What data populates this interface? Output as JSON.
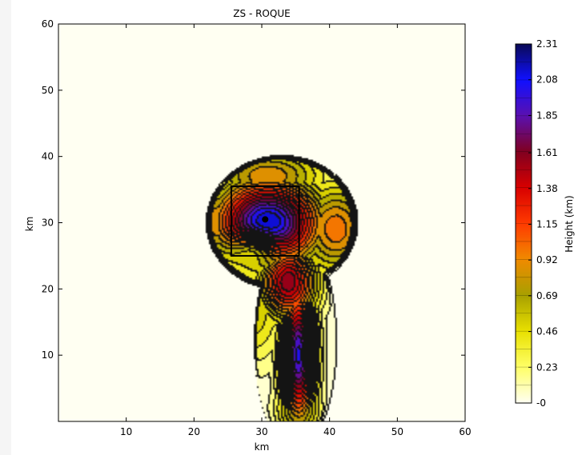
{
  "chart_data": {
    "type": "heatmap",
    "title": "ZS - ROQUE",
    "xlabel": "km",
    "ylabel": "km",
    "xlim": [
      0,
      60
    ],
    "ylim": [
      0,
      60
    ],
    "xticks": [
      "10",
      "20",
      "30",
      "40",
      "50",
      "60"
    ],
    "xtick_values": [
      10,
      20,
      30,
      40,
      50,
      60
    ],
    "yticks": [
      "10",
      "20",
      "30",
      "40",
      "50",
      "60"
    ],
    "ytick_values": [
      10,
      20,
      30,
      40,
      50,
      60
    ],
    "colorbar": {
      "label": "Height (km)",
      "ticks": [
        "2.31",
        "2.08",
        "1.85",
        "1.61",
        "1.38",
        "1.15",
        "0.92",
        "0.69",
        "0.46",
        "0.23",
        "-0"
      ],
      "tick_values": [
        2.31,
        2.08,
        1.85,
        1.61,
        1.38,
        1.15,
        0.92,
        0.69,
        0.46,
        0.23,
        0
      ],
      "range": [
        0,
        2.31
      ],
      "colors": [
        "#fffff2",
        "#ffff66",
        "#e8e000",
        "#a8a000",
        "#f08a00",
        "#ff3a00",
        "#d80000",
        "#800020",
        "#5a10b0",
        "#1010ff",
        "#0a0a55"
      ]
    },
    "background_color": "#fffff2",
    "island_peaks": [
      {
        "name": "caldera-summit",
        "x": 31,
        "y": 30,
        "h": 2.2,
        "sx": 5.5,
        "sy": 4.5
      },
      {
        "name": "ridge-south",
        "x": 35.5,
        "y": 10,
        "h": 2.0,
        "sx": 1.8,
        "sy": 7.0
      },
      {
        "name": "ridge-mid",
        "x": 34,
        "y": 21,
        "h": 1.6,
        "sx": 3.0,
        "sy": 4.0
      },
      {
        "name": "west-shoulder",
        "x": 24,
        "y": 30,
        "h": 0.9,
        "sx": 4.0,
        "sy": 5.0
      },
      {
        "name": "north-flank",
        "x": 31,
        "y": 37,
        "h": 0.9,
        "sx": 6.0,
        "sy": 3.0
      },
      {
        "name": "east-flank",
        "x": 41,
        "y": 29,
        "h": 1.0,
        "sx": 4.0,
        "sy": 5.0
      },
      {
        "name": "southwest-flank",
        "x": 28,
        "y": 17,
        "h": 0.6,
        "sx": 4.0,
        "sy": 6.0
      },
      {
        "name": "south-tip",
        "x": 35.5,
        "y": 2,
        "h": 0.9,
        "sx": 2.2,
        "sy": 3.0
      }
    ],
    "caldera": {
      "x": 29,
      "y": 26,
      "h": -0.7,
      "sx": 2.2,
      "sy": 1.6
    },
    "highlight_box": {
      "x0": 25.5,
      "x1": 35.5,
      "y0": 25,
      "y1": 35.5
    },
    "marker_point": {
      "x": 30.5,
      "y": 30.5
    }
  }
}
